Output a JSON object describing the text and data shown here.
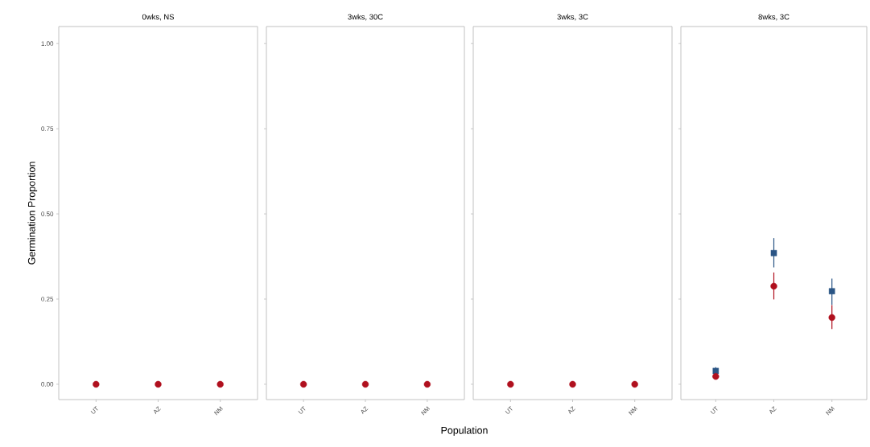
{
  "chart_data": [
    {
      "type": "scatter",
      "title": "0wks, NS",
      "ylabel": "Germination Proportion",
      "categories": [
        "UT",
        "AZ",
        "NM"
      ],
      "ylim": [
        -0.045,
        1.05
      ],
      "yticks": [
        {
          "value": 0,
          "label": "0.00"
        },
        {
          "value": 0.25,
          "label": "0.25"
        },
        {
          "value": 0.5,
          "label": "0.50"
        },
        {
          "value": 0.75,
          "label": "0.75"
        },
        {
          "value": 1,
          "label": "1.00"
        }
      ],
      "grid": false,
      "series": [
        {
          "color": "#2a5585",
          "marker": "square",
          "values": [
            null,
            null,
            null
          ]
        },
        {
          "color": "#b0101e",
          "marker": "circle",
          "values": [
            0,
            0,
            0
          ]
        }
      ]
    },
    {
      "type": "scatter",
      "title": "3wks, 30C",
      "xlabel": "Population",
      "categories": [
        "UT",
        "AZ",
        "NM"
      ],
      "ylim": [
        -0.045,
        1.05
      ],
      "tick_labels": "x",
      "grid": false,
      "series": [
        {
          "color": "#2a5585",
          "marker": "square",
          "values": [
            null,
            null,
            null
          ]
        },
        {
          "color": "#b0101e",
          "marker": "circle",
          "values": [
            0,
            0,
            0
          ]
        }
      ]
    },
    {
      "type": "scatter",
      "title": "3wks, 3C",
      "categories": [
        "UT",
        "AZ",
        "NM"
      ],
      "ylim": [
        -0.045,
        1.05
      ],
      "tick_labels": "x",
      "grid": false,
      "series": [
        {
          "color": "#2a5585",
          "marker": "square",
          "values": [
            null,
            null,
            null
          ]
        },
        {
          "color": "#b0101e",
          "marker": "circle",
          "values": [
            0,
            0,
            0
          ]
        }
      ]
    },
    {
      "type": "scatter",
      "title": "8wks, 3C",
      "categories": [
        "UT",
        "AZ",
        "NM"
      ],
      "ylim": [
        -0.045,
        1.05
      ],
      "tick_labels": "x",
      "grid": false,
      "series": [
        {
          "color": "#2a5585",
          "marker": "square",
          "values": [
            0.039,
            0.385,
            0.273
          ],
          "errors": [
            [
              0.027,
              0.05
            ],
            [
              0.343,
              0.429
            ],
            [
              0.233,
              0.31
            ]
          ]
        },
        {
          "color": "#b0101e",
          "marker": "circle",
          "values": [
            0.023,
            0.288,
            0.196
          ],
          "errors": [
            null,
            [
              0.249,
              0.328
            ],
            [
              0.162,
              0.232
            ]
          ]
        }
      ]
    }
  ]
}
